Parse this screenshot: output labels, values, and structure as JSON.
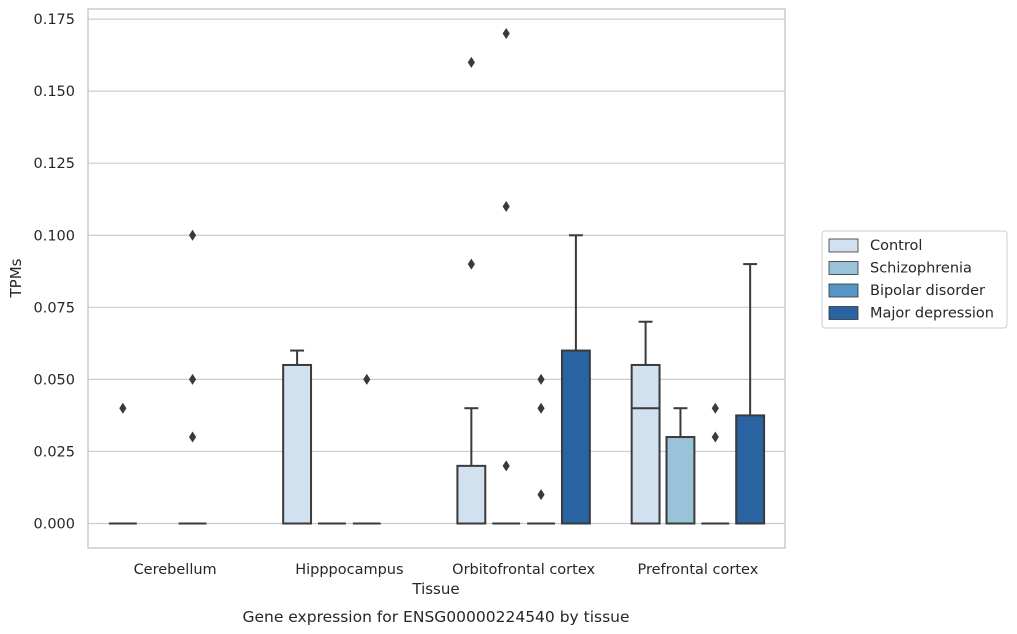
{
  "chart_data": {
    "type": "box",
    "title": "Gene expression for ENSG00000224540 by tissue",
    "xlabel": "Tissue",
    "ylabel": "TPMs",
    "ylim": [
      -0.0085,
      0.1785
    ],
    "yticks": [
      "0.000",
      "0.025",
      "0.050",
      "0.075",
      "0.100",
      "0.125",
      "0.150",
      "0.175"
    ],
    "ytick_values": [
      0,
      0.025,
      0.05,
      0.075,
      0.1,
      0.125,
      0.15,
      0.175
    ],
    "categories": [
      "Cerebellum",
      "Hipppocampus",
      "Orbitofrontal cortex",
      "Prefrontal cortex"
    ],
    "grid": "horizontal",
    "legend_position": "right",
    "series": [
      {
        "name": "Control",
        "color": "#d1e1f0"
      },
      {
        "name": "Schizophrenia",
        "color": "#9ac3da"
      },
      {
        "name": "Bipolar disorder",
        "color": "#5696c6"
      },
      {
        "name": "Major depression",
        "color": "#2963a1"
      }
    ],
    "boxes": [
      {
        "category": "Cerebellum",
        "series": "Control",
        "q1": 0,
        "median": 0,
        "q3": 0,
        "whisker_low": 0,
        "whisker_high": 0,
        "outliers": [
          0.04
        ]
      },
      {
        "category": "Cerebellum",
        "series": "Bipolar disorder",
        "q1": 0,
        "median": 0,
        "q3": 0,
        "whisker_low": 0,
        "whisker_high": 0,
        "outliers": [
          0.1,
          0.05,
          0.03
        ]
      },
      {
        "category": "Hipppocampus",
        "series": "Control",
        "q1": 0,
        "median": 0,
        "q3": 0.055,
        "whisker_low": 0,
        "whisker_high": 0.06,
        "outliers": []
      },
      {
        "category": "Hipppocampus",
        "series": "Schizophrenia",
        "q1": 0,
        "median": 0,
        "q3": 0,
        "whisker_low": 0,
        "whisker_high": 0,
        "outliers": []
      },
      {
        "category": "Hipppocampus",
        "series": "Bipolar disorder",
        "q1": 0,
        "median": 0,
        "q3": 0,
        "whisker_low": 0,
        "whisker_high": 0,
        "outliers": [
          0.05
        ]
      },
      {
        "category": "Orbitofrontal cortex",
        "series": "Control",
        "q1": 0,
        "median": 0,
        "q3": 0.02,
        "whisker_low": 0,
        "whisker_high": 0.04,
        "outliers": [
          0.16,
          0.09
        ]
      },
      {
        "category": "Orbitofrontal cortex",
        "series": "Schizophrenia",
        "q1": 0,
        "median": 0,
        "q3": 0,
        "whisker_low": 0,
        "whisker_high": 0,
        "outliers": [
          0.17,
          0.11,
          0.02
        ]
      },
      {
        "category": "Orbitofrontal cortex",
        "series": "Bipolar disorder",
        "q1": 0,
        "median": 0,
        "q3": 0,
        "whisker_low": 0,
        "whisker_high": 0,
        "outliers": [
          0.05,
          0.04,
          0.01
        ]
      },
      {
        "category": "Orbitofrontal cortex",
        "series": "Major depression",
        "q1": 0,
        "median": 0,
        "q3": 0.06,
        "whisker_low": 0,
        "whisker_high": 0.1,
        "outliers": []
      },
      {
        "category": "Prefrontal cortex",
        "series": "Control",
        "q1": 0,
        "median": 0.04,
        "q3": 0.055,
        "whisker_low": 0,
        "whisker_high": 0.07,
        "outliers": []
      },
      {
        "category": "Prefrontal cortex",
        "series": "Schizophrenia",
        "q1": 0,
        "median": 0,
        "q3": 0.03,
        "whisker_low": 0,
        "whisker_high": 0.04,
        "outliers": []
      },
      {
        "category": "Prefrontal cortex",
        "series": "Bipolar disorder",
        "q1": 0,
        "median": 0,
        "q3": 0,
        "whisker_low": 0,
        "whisker_high": 0,
        "outliers": [
          0.04,
          0.03
        ]
      },
      {
        "category": "Prefrontal cortex",
        "series": "Major depression",
        "q1": 0,
        "median": 0,
        "q3": 0.0375,
        "whisker_low": 0,
        "whisker_high": 0.09,
        "outliers": []
      }
    ]
  }
}
